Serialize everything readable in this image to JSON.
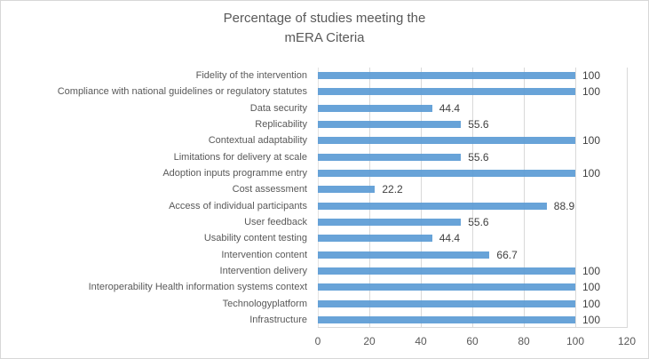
{
  "chart_data": {
    "type": "bar",
    "orientation": "horizontal",
    "title": "Percentage of studies meeting the\nmERA Citeria",
    "categories": [
      "Fidelity of the intervention",
      "Compliance with national guidelines or regulatory statutes",
      "Data security",
      "Replicability",
      "Contextual adaptability",
      "Limitations for delivery at scale",
      "Adoption inputs programme entry",
      "Cost assessment",
      "Access of individual participants",
      "User feedback",
      "Usability content testing",
      "Intervention content",
      "Intervention delivery",
      "Interoperability Health information systems context",
      "Technologyplatform",
      "Infrastructure"
    ],
    "values": [
      100,
      100,
      44.4,
      55.6,
      100,
      55.6,
      100,
      22.2,
      88.9,
      55.6,
      44.4,
      66.7,
      100,
      100,
      100,
      100
    ],
    "value_labels": [
      "100",
      "100",
      "44.4",
      "55.6",
      "100",
      "55.6",
      "100",
      "22.2",
      "88.9",
      "55.6",
      "44.4",
      "66.7",
      "100",
      "100",
      "100",
      "100"
    ],
    "xlabel": "",
    "ylabel": "",
    "xlim": [
      0,
      120
    ],
    "x_ticks": [
      0,
      20,
      40,
      60,
      80,
      100,
      120
    ],
    "grid": true,
    "legend_position": "none",
    "bar_color": "#5b9bd5",
    "gridline_color": "#d9d9d9",
    "axis_text_color": "#595959",
    "data_label_color": "#404040",
    "title_color": "#595959"
  }
}
